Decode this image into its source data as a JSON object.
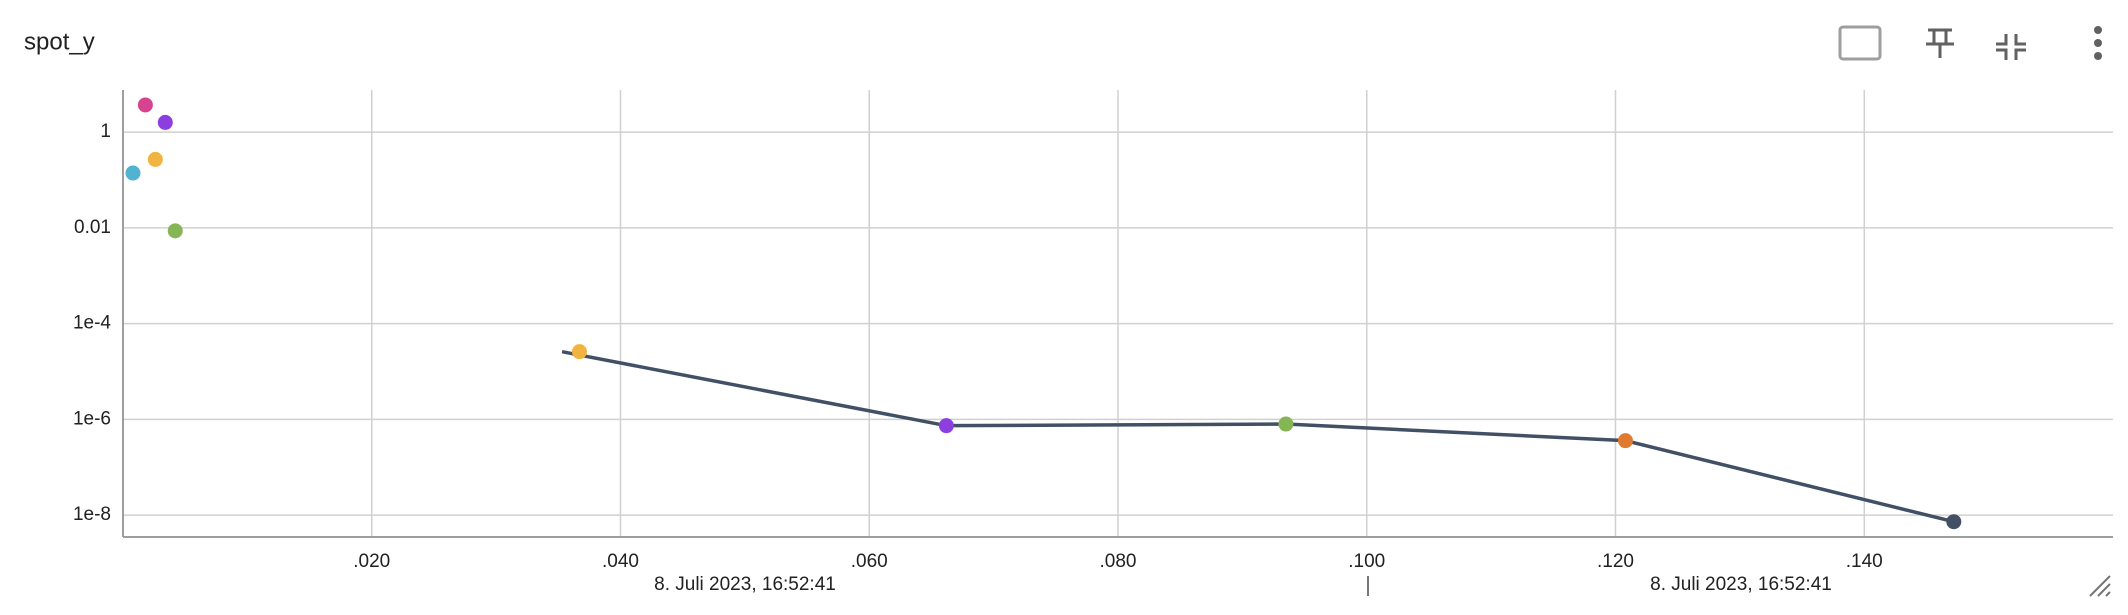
{
  "chart_data": {
    "type": "scatter",
    "title": "spot_y",
    "log_y": true,
    "grid": true,
    "xlim": [
      0,
      0.16
    ],
    "ylim": [
      3.5e-09,
      7.6
    ],
    "xticks": [
      {
        "value": 0.02,
        "label": ".020"
      },
      {
        "value": 0.04,
        "label": ".040"
      },
      {
        "value": 0.06,
        "label": ".060"
      },
      {
        "value": 0.08,
        "label": ".080"
      },
      {
        "value": 0.1,
        "label": ".100"
      },
      {
        "value": 0.12,
        "label": ".120"
      },
      {
        "value": 0.14,
        "label": ".140"
      }
    ],
    "yticks": [
      1,
      0.01,
      {
        "value": 0.0001,
        "label": "1e-4"
      },
      {
        "value": 1e-06,
        "label": "1e-6"
      },
      {
        "value": 1e-08,
        "label": "1e-8"
      }
    ],
    "line": {
      "color": "#425066",
      "x": [
        0.0353,
        0.0662,
        0.0935,
        0.1208,
        0.1472
      ],
      "y": [
        2.6e-05,
        7.4e-07,
        8e-07,
        3.6e-07,
        7.3e-09
      ]
    },
    "points": [
      {
        "color": "#d6448f",
        "x": 0.0018,
        "y": 3.7
      },
      {
        "color": "#8c3ee0",
        "x": 0.0034,
        "y": 1.6
      },
      {
        "color": "#f2b441",
        "x": 0.0026,
        "y": 0.27
      },
      {
        "color": "#4fb3d1",
        "x": 0.0008,
        "y": 0.14
      },
      {
        "color": "#86b556",
        "x": 0.0042,
        "y": 0.0087
      },
      {
        "color": "#f2b441",
        "x": 0.0367,
        "y": 2.6e-05
      },
      {
        "color": "#8c3ee0",
        "x": 0.0662,
        "y": 7.4e-07
      },
      {
        "color": "#86b556",
        "x": 0.0935,
        "y": 8e-07
      },
      {
        "color": "#e07a2f",
        "x": 0.1208,
        "y": 3.6e-07
      },
      {
        "color": "#425066",
        "x": 0.1472,
        "y": 7.3e-09
      }
    ],
    "annotations": [
      "8. Juli 2023, 16:52:41",
      "8. Juli 2023, 16:52:41"
    ]
  }
}
